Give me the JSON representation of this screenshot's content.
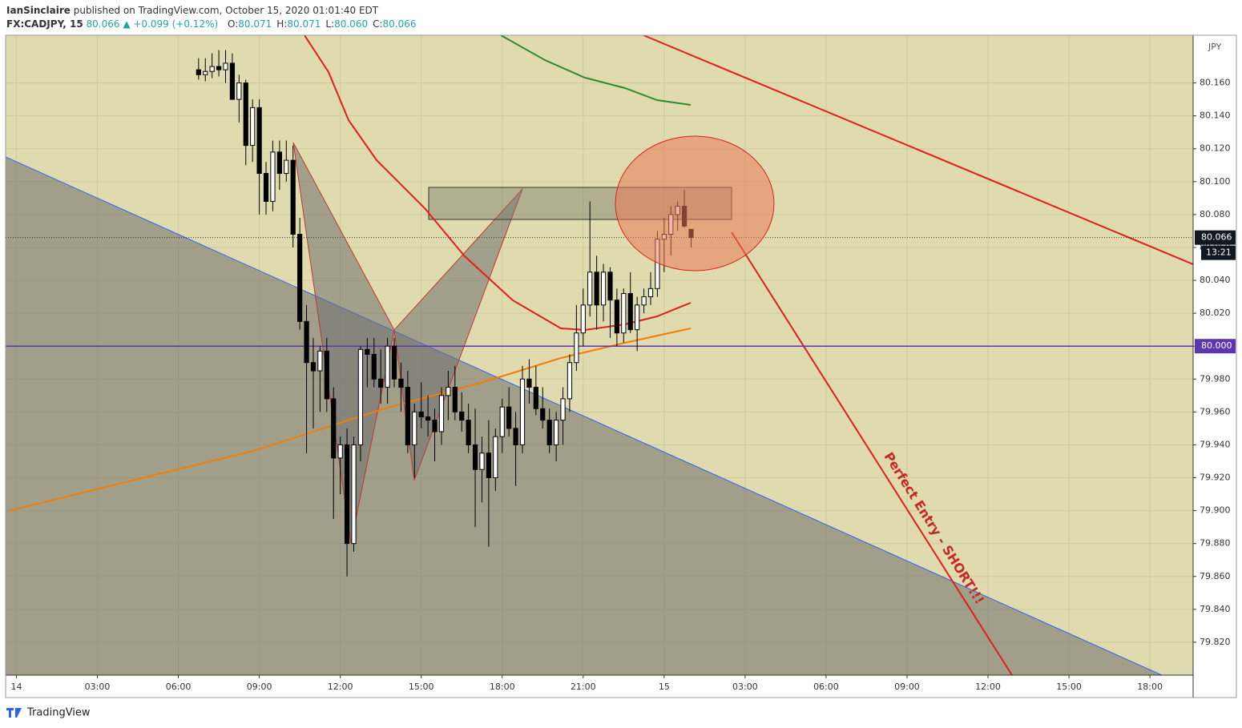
{
  "header": {
    "author": "IanSinclaire",
    "published": "published on TradingView.com, October 15, 2020 01:01:40 EDT",
    "symbol": "FX:CADJPY, 15",
    "last": "80.066",
    "change": "▲ +0.099 (+0.12%)",
    "ohlc": [
      {
        "k": "O:",
        "v": "80.071"
      },
      {
        "k": "H:",
        "v": "80.071"
      },
      {
        "k": "L:",
        "v": "80.060"
      },
      {
        "k": "C:",
        "v": "80.066"
      }
    ]
  },
  "footer": {
    "brand": "TradingView"
  },
  "chart_data": {
    "type": "candlestick",
    "currency": "JPY",
    "countdown": "13:21",
    "annotation": "Perfect Entry - SHORT!!!",
    "hline": {
      "value": 80,
      "label": "80.000"
    },
    "xlim": [
      -0.4,
      43.6
    ],
    "ylim": [
      79.8,
      80.189
    ],
    "xticks": [
      {
        "value": 0,
        "label": "14"
      },
      {
        "value": 3,
        "label": "03:00"
      },
      {
        "value": 6,
        "label": "06:00"
      },
      {
        "value": 9,
        "label": "09:00"
      },
      {
        "value": 12,
        "label": "12:00"
      },
      {
        "value": 15,
        "label": "15:00"
      },
      {
        "value": 18,
        "label": "18:00"
      },
      {
        "value": 21,
        "label": "21:00"
      },
      {
        "value": 24,
        "label": "15"
      },
      {
        "value": 27,
        "label": "03:00"
      },
      {
        "value": 30,
        "label": "06:00"
      },
      {
        "value": 33,
        "label": "09:00"
      },
      {
        "value": 36,
        "label": "12:00"
      },
      {
        "value": 39,
        "label": "15:00"
      },
      {
        "value": 42,
        "label": "18:00"
      }
    ],
    "yticks": [
      {
        "value": 80.16,
        "label": "80.160"
      },
      {
        "value": 80.14,
        "label": "80.140"
      },
      {
        "value": 80.12,
        "label": "80.120"
      },
      {
        "value": 80.1,
        "label": "80.100"
      },
      {
        "value": 80.08,
        "label": "80.080"
      },
      {
        "value": 80.06,
        "label": "80.060"
      },
      {
        "value": 80.04,
        "label": "80.040"
      },
      {
        "value": 80.02,
        "label": "80.020"
      },
      {
        "value": 80,
        "label": "80.000"
      },
      {
        "value": 79.98,
        "label": "79.980"
      },
      {
        "value": 79.96,
        "label": "79.960"
      },
      {
        "value": 79.94,
        "label": "79.940"
      },
      {
        "value": 79.92,
        "label": "79.920"
      },
      {
        "value": 79.9,
        "label": "79.900"
      },
      {
        "value": 79.88,
        "label": "79.880"
      },
      {
        "value": 79.86,
        "label": "79.860"
      },
      {
        "value": 79.84,
        "label": "79.840"
      },
      {
        "value": 79.82,
        "label": "79.820"
      }
    ],
    "grid": true,
    "x": [
      6.75,
      7,
      7.25,
      7.5,
      7.75,
      8,
      8.25,
      8.5,
      8.75,
      9,
      9.25,
      9.5,
      9.75,
      10,
      10.25,
      10.5,
      10.75,
      11,
      11.25,
      11.5,
      11.75,
      12,
      12.25,
      12.5,
      12.75,
      13,
      13.25,
      13.5,
      13.75,
      14,
      14.25,
      14.5,
      14.75,
      15,
      15.25,
      15.5,
      15.75,
      16,
      16.25,
      16.5,
      16.75,
      17,
      17.25,
      17.5,
      17.75,
      18,
      18.25,
      18.5,
      18.75,
      19,
      19.25,
      19.5,
      19.75,
      20,
      20.25,
      20.5,
      20.75,
      21,
      21.25,
      21.5,
      21.75,
      22,
      22.25,
      22.5,
      22.75,
      23,
      23.25,
      23.5,
      23.75,
      24,
      24.25,
      24.5,
      24.75,
      25
    ],
    "open": [
      80.168,
      80.165,
      80.167,
      80.17,
      80.168,
      80.172,
      80.15,
      80.16,
      80.122,
      80.145,
      80.105,
      80.088,
      80.118,
      80.105,
      80.113,
      80.068,
      80.015,
      79.99,
      79.985,
      79.997,
      79.968,
      79.932,
      79.94,
      79.88,
      79.94,
      79.998,
      79.995,
      79.98,
      79.975,
      80,
      79.98,
      79.975,
      79.94,
      79.96,
      79.957,
      79.955,
      79.948,
      79.97,
      79.975,
      79.96,
      79.955,
      79.94,
      79.925,
      79.935,
      79.92,
      79.945,
      79.963,
      79.95,
      79.94,
      79.98,
      79.975,
      79.962,
      79.955,
      79.94,
      79.955,
      79.968,
      79.99,
      80.008,
      80.025,
      80.045,
      80.025,
      80.045,
      80.028,
      80.008,
      80.032,
      80.01,
      80.025,
      80.03,
      80.035,
      80.065,
      80.068,
      80.08,
      80.085,
      80.071
    ],
    "high": [
      80.175,
      80.175,
      80.178,
      80.18,
      80.18,
      80.178,
      80.165,
      80.162,
      80.15,
      80.15,
      80.112,
      80.125,
      80.125,
      80.125,
      80.122,
      80.078,
      80.025,
      80.005,
      80,
      80.005,
      79.975,
      79.945,
      79.95,
      79.945,
      80,
      80.005,
      80.005,
      79.998,
      80.005,
      80.005,
      79.99,
      79.985,
      79.965,
      79.978,
      79.97,
      79.962,
      79.975,
      79.985,
      79.988,
      79.972,
      79.965,
      79.962,
      79.945,
      79.955,
      79.95,
      79.968,
      79.975,
      79.96,
      79.988,
      79.992,
      79.988,
      79.975,
      79.962,
      79.96,
      79.975,
      79.995,
      80.025,
      80.035,
      80.088,
      80.055,
      80.05,
      80.048,
      80.035,
      80.035,
      80.045,
      80.03,
      80.035,
      80.045,
      80.07,
      80.078,
      80.085,
      80.088,
      80.095,
      80.071
    ],
    "low": [
      80.162,
      80.161,
      80.163,
      80.164,
      80.16,
      80.15,
      80.136,
      80.11,
      80.112,
      80.08,
      80.08,
      80.082,
      80.095,
      80.1,
      80.06,
      80.01,
      79.935,
      79.95,
      79.96,
      79.96,
      79.895,
      79.91,
      79.86,
      79.875,
      79.93,
      79.975,
      79.975,
      79.965,
      79.965,
      79.975,
      79.96,
      79.935,
      79.92,
      79.95,
      79.945,
      79.93,
      79.94,
      79.955,
      79.955,
      79.948,
      79.935,
      79.89,
      79.905,
      79.878,
      79.912,
      79.935,
      79.945,
      79.915,
      79.935,
      79.965,
      79.958,
      79.95,
      79.935,
      79.93,
      79.94,
      79.96,
      79.985,
      80,
      80.018,
      80.01,
      80.015,
      80.005,
      80,
      80.002,
      80.008,
      79.997,
      80.02,
      80.025,
      80.03,
      80.045,
      80.055,
      80.07,
      80.072,
      80.06
    ],
    "close": [
      80.165,
      80.167,
      80.17,
      80.168,
      80.172,
      80.15,
      80.16,
      80.122,
      80.145,
      80.105,
      80.088,
      80.118,
      80.105,
      80.113,
      80.068,
      80.015,
      79.99,
      79.985,
      79.997,
      79.968,
      79.932,
      79.94,
      79.88,
      79.94,
      79.998,
      79.995,
      79.98,
      79.975,
      80,
      79.98,
      79.975,
      79.94,
      79.96,
      79.957,
      79.955,
      79.948,
      79.97,
      79.975,
      79.96,
      79.955,
      79.94,
      79.925,
      79.935,
      79.92,
      79.945,
      79.963,
      79.95,
      79.94,
      79.98,
      79.975,
      79.962,
      79.955,
      79.94,
      79.955,
      79.968,
      79.99,
      80.008,
      80.025,
      80.045,
      80.025,
      80.045,
      80.028,
      80.008,
      80.032,
      80.01,
      80.025,
      80.03,
      80.035,
      80.065,
      80.068,
      80.08,
      80.085,
      80.073,
      80.066
    ]
  }
}
